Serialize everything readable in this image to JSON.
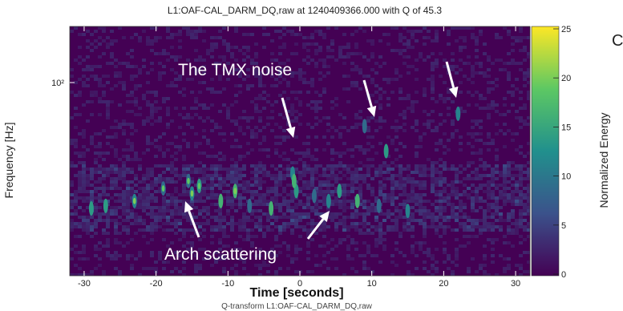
{
  "chart_data": {
    "type": "heatmap",
    "title": "L1:OAF-CAL_DARM_DQ,raw at 1240409366.000 with Q of 45.3",
    "xlabel": "Time [seconds]",
    "x_subtitle": "Q-transform L1:OAF-CAL_DARM_DQ,raw",
    "ylabel": "Frequency [Hz]",
    "colorbar_label": "Normalized Energy",
    "xlim": [
      -32,
      32
    ],
    "x_ticks": [
      -30,
      -20,
      -10,
      0,
      10,
      20,
      30
    ],
    "y_scale": "log",
    "y_ticks": [
      "10²"
    ],
    "colorbar_range": [
      0,
      25
    ],
    "colorbar_ticks": [
      0,
      5,
      10,
      15,
      20,
      25
    ],
    "colormap": [
      "#440154",
      "#3b528b",
      "#21908d",
      "#5dc863",
      "#fde725"
    ],
    "annotations": [
      {
        "text": "The TMX noise",
        "arrows": 3
      },
      {
        "text": "Arch scattering",
        "arrows": 2
      }
    ]
  },
  "truncated_text": "C"
}
